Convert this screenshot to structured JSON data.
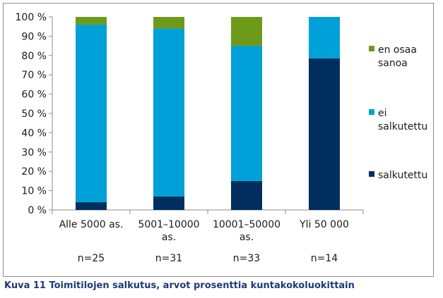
{
  "chart_data": {
    "type": "bar",
    "stacked": true,
    "categories": [
      [
        "Alle 5000 as."
      ],
      [
        "5001–10000",
        "as."
      ],
      [
        "10001–50000",
        "as."
      ],
      [
        "Yli 50 000"
      ]
    ],
    "n_labels": [
      "n=25",
      "n=31",
      "n=33",
      "n=14"
    ],
    "series": [
      {
        "name": "salkutettu",
        "color": "#002f5f",
        "values": [
          4,
          7,
          15,
          78.5
        ]
      },
      {
        "name": "ei salkutettu",
        "legend_lines": [
          "ei",
          "salkutettu"
        ],
        "color": "#00a0d8",
        "values": [
          92,
          87,
          70,
          21.5
        ]
      },
      {
        "name": "en osaa sanoa",
        "legend_lines": [
          "en osaa",
          "sanoa"
        ],
        "color": "#6e9a1a",
        "values": [
          4,
          6,
          15,
          0
        ]
      }
    ],
    "y_ticks": [
      "0 %",
      "10 %",
      "20 %",
      "30 %",
      "40 %",
      "50 %",
      "60 %",
      "70 %",
      "80 %",
      "90 %",
      "100 %"
    ],
    "ylim": [
      0,
      100
    ],
    "grid": false,
    "legend_position": "right"
  },
  "caption": "Kuva 11 Toimitilojen salkutus, arvot prosenttia kuntakokoluokittain"
}
